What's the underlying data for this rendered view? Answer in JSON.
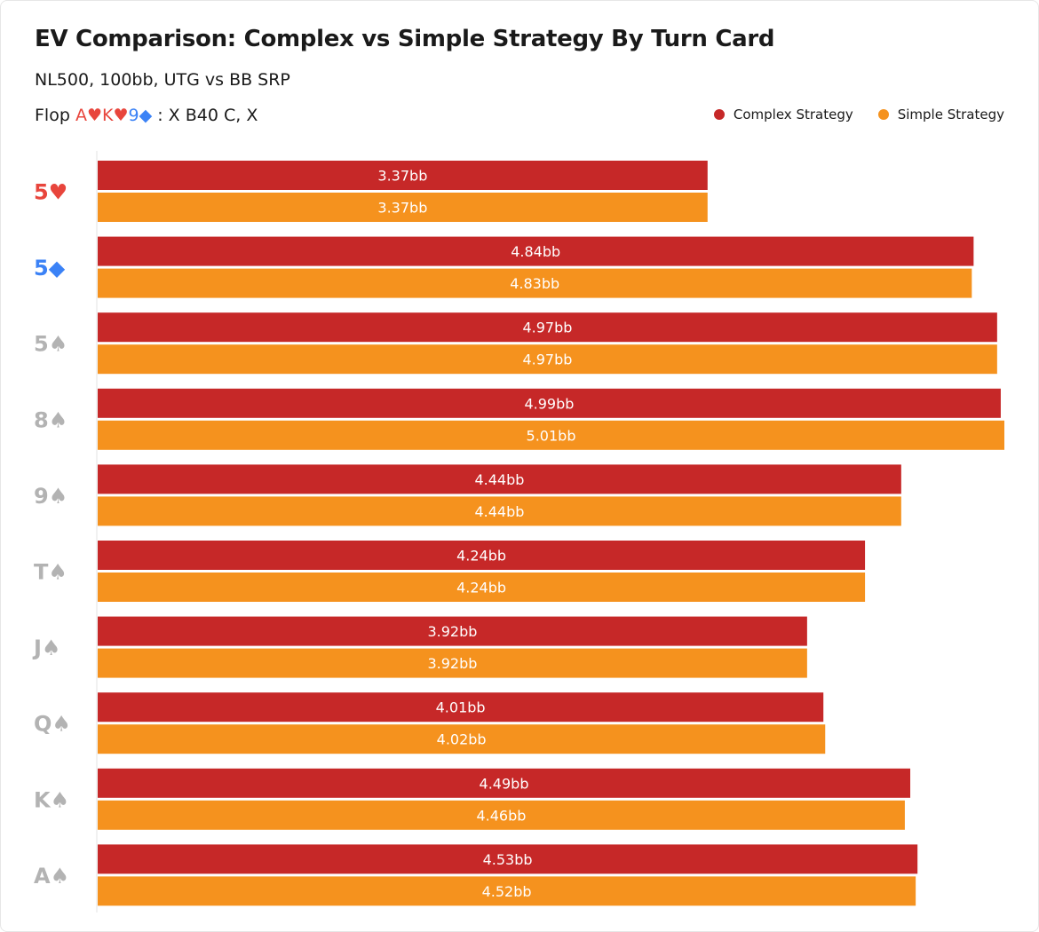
{
  "title": "EV Comparison: Complex vs Simple Strategy By Turn Card",
  "subtitle": "NL500, 100bb, UTG vs BB SRP",
  "flop": {
    "prefix": "Flop",
    "cards": [
      {
        "text": "A♥",
        "color": "#e8453c"
      },
      {
        "text": "K♥",
        "color": "#e8453c"
      },
      {
        "text": "9◆",
        "color": "#3b82f6"
      }
    ],
    "suffix": ": X B40 C, X"
  },
  "legend": [
    {
      "label": "Complex Strategy",
      "color": "#c62828"
    },
    {
      "label": "Simple Strategy",
      "color": "#f5921e"
    }
  ],
  "chart_data": {
    "type": "bar",
    "orientation": "horizontal",
    "categories": [
      "5♥",
      "5◆",
      "5♠",
      "8♠",
      "9♠",
      "T♠",
      "J♠",
      "Q♠",
      "K♠",
      "A♠"
    ],
    "category_colors": [
      "#e8453c",
      "#3b82f6",
      "#b3b3b3",
      "#b3b3b3",
      "#b3b3b3",
      "#b3b3b3",
      "#b3b3b3",
      "#b3b3b3",
      "#b3b3b3",
      "#b3b3b3"
    ],
    "series": [
      {
        "name": "Complex Strategy",
        "color": "#c62828",
        "values": [
          3.37,
          4.84,
          4.97,
          4.99,
          4.44,
          4.24,
          3.92,
          4.01,
          4.49,
          4.53
        ],
        "labels": [
          "3.37bb",
          "4.84bb",
          "4.97bb",
          "4.99bb",
          "4.44bb",
          "4.24bb",
          "3.92bb",
          "4.01bb",
          "4.49bb",
          "4.53bb"
        ]
      },
      {
        "name": "Simple Strategy",
        "color": "#f5921e",
        "values": [
          3.37,
          4.83,
          4.97,
          5.01,
          4.44,
          4.24,
          3.92,
          4.02,
          4.46,
          4.52
        ],
        "labels": [
          "3.37bb",
          "4.83bb",
          "4.97bb",
          "5.01bb",
          "4.44bb",
          "4.24bb",
          "3.92bb",
          "4.02bb",
          "4.46bb",
          "4.52bb"
        ]
      }
    ],
    "xlim": [
      0,
      5.01
    ],
    "grid": false,
    "legend_position": "top-right",
    "xlabel": "",
    "ylabel": ""
  }
}
